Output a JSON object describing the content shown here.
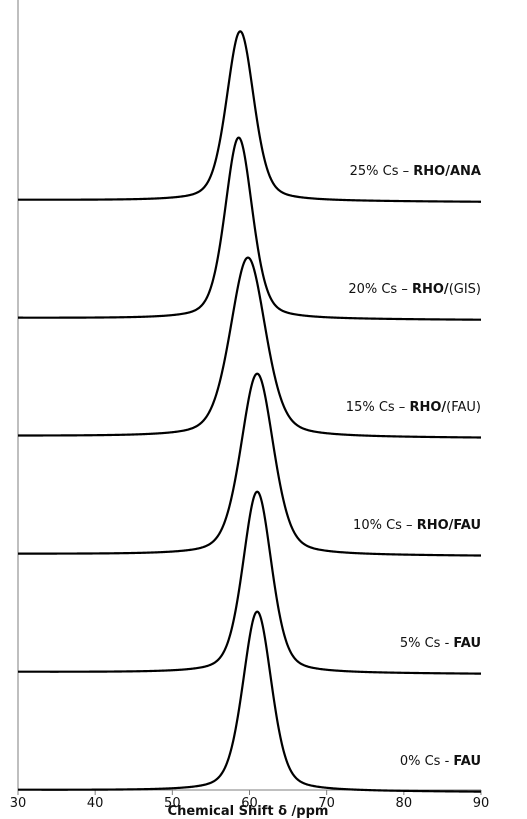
{
  "chart_data": {
    "type": "line",
    "xlabel": "Chemical Shift δ /ppm",
    "xlim": [
      30,
      90
    ],
    "xticks": [
      "30",
      "40",
      "50",
      "60",
      "70",
      "80",
      "90"
    ],
    "y_axis": "stacked spectra, unlabeled",
    "grid": false,
    "series": [
      {
        "label_parts": [
          {
            "text": "0% Cs - ",
            "bold": false
          },
          {
            "text": "FAU",
            "bold": true
          }
        ],
        "peak_center": 61.0,
        "peak_height": 0.92,
        "peak_width": 2.2
      },
      {
        "label_parts": [
          {
            "text": "5% Cs - ",
            "bold": false
          },
          {
            "text": "FAU",
            "bold": true
          }
        ],
        "peak_center": 61.0,
        "peak_height": 0.93,
        "peak_width": 2.2
      },
      {
        "label_parts": [
          {
            "text": "10% Cs – ",
            "bold": false
          },
          {
            "text": "RHO/FAU",
            "bold": true
          }
        ],
        "peak_center": 61.0,
        "peak_height": 0.93,
        "peak_width": 2.5
      },
      {
        "label_parts": [
          {
            "text": "15% Cs – ",
            "bold": false
          },
          {
            "text": "RHO/",
            "bold": true
          },
          {
            "text": "(FAU)",
            "bold": false
          }
        ],
        "peak_center": 59.8,
        "peak_height": 0.92,
        "peak_width": 2.7
      },
      {
        "label_parts": [
          {
            "text": "20% Cs – ",
            "bold": false
          },
          {
            "text": "RHO/",
            "bold": true
          },
          {
            "text": "(GIS)",
            "bold": false
          }
        ],
        "peak_center": 58.6,
        "peak_height": 0.93,
        "peak_width": 2.1
      },
      {
        "label_parts": [
          {
            "text": "25% Cs – ",
            "bold": false
          },
          {
            "text": "RHO/ANA",
            "bold": true
          }
        ],
        "peak_center": 58.8,
        "peak_height": 0.87,
        "peak_width": 2.1
      }
    ]
  }
}
